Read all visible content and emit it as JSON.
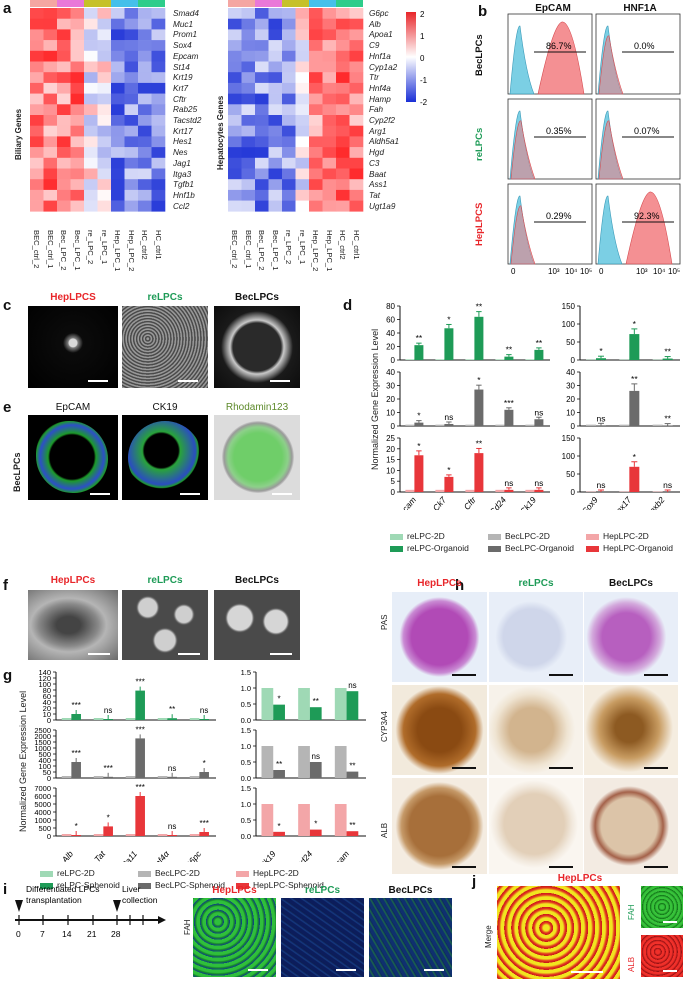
{
  "panels": {
    "a": "a",
    "b": "b",
    "c": "c",
    "d": "d",
    "e": "e",
    "f": "f",
    "g": "g",
    "h": "h",
    "i": "i",
    "j": "j"
  },
  "heatmap": {
    "biliary_label": "Biliary Genes",
    "hepatocyte_label": "Hepatocytes Genes",
    "biliary_genes": [
      "Smad4",
      "Muc1",
      "Prom1",
      "Sox4",
      "Epcam",
      "St14",
      "Krt19",
      "Krt7",
      "Cftr",
      "Rab25",
      "Tacstd2",
      "Krt17",
      "Hes1",
      "Nes",
      "Jag1",
      "Itga3",
      "Tgfb1",
      "Hnf1b",
      "Ccl2"
    ],
    "hepatocyte_genes": [
      "G6pc",
      "Alb",
      "Apoa1",
      "C9",
      "Hnf1a",
      "Cyp1a2",
      "Ttr",
      "Hnf4a",
      "Hamp",
      "Fah",
      "Cyp2f2",
      "Arg1",
      "Aldh5a1",
      "Hgd",
      "C3",
      "Baat",
      "Ass1",
      "Tat",
      "Ugt1a9"
    ],
    "samples_left": [
      "BEC_ctrl_2",
      "BEC_ctrl_1",
      "Bec_LPC_2",
      "Bec_LPC_1",
      "re_LPC_2",
      "re_LPC_1",
      "Hep_LPC_1",
      "Hep_LPC_2",
      "HC_ctrl2",
      "HC_ctrl1"
    ],
    "samples_right": [
      "BEC_ctrl_2",
      "BEC_ctrl_1",
      "Bec_LPC_2",
      "Bec_LPC_1",
      "re_LPC_2",
      "re_LPC_1",
      "Hep_LPC_2",
      "Hep_LPC_1",
      "HC_ctrl2",
      "HC_ctrl1"
    ],
    "scale_ticks": [
      "2",
      "1",
      "0",
      "-1",
      "-2"
    ],
    "colors": {
      "high": "#e8262a",
      "mid": "#ffffff",
      "low": "#1a2fd6"
    }
  },
  "flow": {
    "columns": [
      "EpCAM",
      "HNF1A"
    ],
    "rows": [
      {
        "name": "BecLPCs",
        "color": "#111111",
        "epcam": "86.7%",
        "hnf1a": "0.0%"
      },
      {
        "name": "reLPCs",
        "color": "#1e9b57",
        "epcam": "0.35%",
        "hnf1a": "0.07%"
      },
      {
        "name": "HepLPCS",
        "color": "#e8262a",
        "epcam": "0.29%",
        "hnf1a": "92.3%"
      }
    ],
    "xticks": [
      "0",
      "10³",
      "10⁴",
      "10⁵"
    ]
  },
  "c_titles": [
    "HepLPCS",
    "reLPCs",
    "BecLPCs"
  ],
  "e_titles": [
    "EpCAM",
    "CK19",
    "Rhodamin123"
  ],
  "e_side": "BecLPCs",
  "f_titles": [
    "HepLPCs",
    "reLPCs",
    "BecLPCs"
  ],
  "h_titles": [
    "HepLPCs",
    "reLPCs",
    "BecLPCs"
  ],
  "h_rows": [
    "PAS",
    "CYP3A4",
    "ALB"
  ],
  "i_titles": [
    "HepLPCs",
    "reLPCs",
    "BecLPCs"
  ],
  "i_side": "FAH",
  "i_timeline": {
    "top_left": "Differentiated LPCs",
    "top_left2": "transplantation",
    "top_right": "Liver",
    "top_right2": "collection",
    "ticks": [
      "0",
      "7",
      "14",
      "21",
      "28"
    ]
  },
  "j": {
    "title": "HepLPCs",
    "merge": "Merge",
    "fah": "FAH",
    "alb": "ALB"
  },
  "chart_data": [
    {
      "type": "bar",
      "title": "",
      "ylabel": "Normalized Gene Expression Level",
      "categories": [
        "Epcam",
        "Ck7",
        "Cftr",
        "Cd24",
        "Ck19"
      ],
      "series": [
        {
          "name": "reLPC-Organoid",
          "values": [
            22,
            47,
            64,
            5,
            15
          ],
          "stars": [
            "**",
            "*",
            "**",
            "**",
            "**"
          ],
          "ylim": [
            0,
            80
          ],
          "yticks": [
            "0",
            "20",
            "40",
            "60",
            "80"
          ]
        },
        {
          "name": "BecLPC-Organoid",
          "values": [
            2.5,
            1.5,
            27,
            12,
            5
          ],
          "stars": [
            "*",
            "ns",
            "*",
            "***",
            "ns"
          ],
          "ylim": [
            0,
            40
          ],
          "yticks": [
            "0",
            "10",
            "20",
            "30",
            "40"
          ]
        },
        {
          "name": "HepLPC-Organoid",
          "values": [
            17,
            7,
            18,
            1,
            1
          ],
          "stars": [
            "*",
            "*",
            "**",
            "ns",
            "ns"
          ],
          "ylim": [
            0,
            25
          ],
          "yticks": [
            "0",
            "5",
            "10",
            "15",
            "20",
            "25"
          ]
        }
      ]
    },
    {
      "type": "bar",
      "title": "",
      "categories": [
        "Sox9",
        "Sox17",
        "Hoxb2"
      ],
      "series": [
        {
          "name": "reLPC-Organoid",
          "values": [
            5,
            72,
            4
          ],
          "stars": [
            "*",
            "*",
            "**"
          ],
          "ylim": [
            0,
            150
          ],
          "yticks": [
            "0",
            "50",
            "100",
            "150"
          ]
        },
        {
          "name": "BecLPC-Organoid",
          "values": [
            0.5,
            26,
            0.3
          ],
          "stars": [
            "ns",
            "**",
            "**"
          ],
          "ylim": [
            0,
            40
          ],
          "yticks": [
            "0",
            "10",
            "20",
            "30",
            "40"
          ]
        },
        {
          "name": "HepLPC-Organoid",
          "values": [
            0,
            70,
            0
          ],
          "stars": [
            "ns",
            "*",
            "ns"
          ],
          "ylim": [
            0,
            150
          ],
          "yticks": [
            "0",
            "50",
            "100",
            "150"
          ]
        }
      ]
    },
    {
      "type": "bar",
      "title": "",
      "ylabel": "Normalized Gene Expression Level",
      "categories": [
        "Alb",
        "Tat",
        "Cyp3a11",
        "Hnf4α",
        "G6pc"
      ],
      "series": [
        {
          "name": "reLPC-Sphenoid",
          "values": [
            10,
            0.5,
            78,
            3,
            0.3
          ],
          "stars": [
            "***",
            "ns",
            "***",
            "**",
            "ns"
          ],
          "yticks": [
            "0",
            "10",
            "20",
            "40",
            "60",
            "80",
            "100",
            "120",
            "140"
          ]
        },
        {
          "name": "BecLPC-Sphenoid",
          "values": [
            300,
            10,
            1800,
            10,
            50
          ],
          "stars": [
            "***",
            "***",
            "***",
            "ns",
            "*"
          ],
          "yticks": [
            "0",
            "50",
            "100",
            "400",
            "500",
            "1000",
            "1500",
            "2000",
            "2500"
          ]
        },
        {
          "name": "HepLPC-Sphenoid",
          "values": [
            10,
            600,
            6000,
            0,
            250
          ],
          "stars": [
            "*",
            "*",
            "***",
            "ns",
            "***"
          ],
          "yticks": [
            "0",
            "500",
            "1000",
            "4000",
            "5000",
            "6000",
            "7000"
          ]
        }
      ]
    },
    {
      "type": "bar",
      "title": "",
      "categories": [
        "Ck19",
        "Cd24",
        "Epcam"
      ],
      "series": [
        {
          "name": "reLPC-2D",
          "values": [
            1.0,
            1.0,
            1.0
          ],
          "stars": [
            "",
            "",
            ""
          ]
        },
        {
          "name": "reLPC-Sphenoid",
          "values": [
            0.48,
            0.4,
            0.9
          ],
          "stars": [
            "*",
            "**",
            "ns"
          ],
          "ylim": [
            0,
            1.5
          ],
          "yticks": [
            "0.0",
            "0.5",
            "1.0",
            "1.5"
          ]
        },
        {
          "name": "BecLPC-2D",
          "values": [
            1.0,
            1.0,
            1.0
          ],
          "stars": [
            "",
            "",
            ""
          ]
        },
        {
          "name": "BecLPC-Sphenoid",
          "values": [
            0.25,
            0.5,
            0.2
          ],
          "stars": [
            "**",
            "ns",
            "**"
          ],
          "ylim": [
            0,
            1.5
          ],
          "yticks": [
            "0.0",
            "0.5",
            "1.0",
            "1.5"
          ]
        },
        {
          "name": "HepLPC-2D",
          "values": [
            1.0,
            1.0,
            1.0
          ],
          "stars": [
            "",
            "",
            ""
          ]
        },
        {
          "name": "HepLPC-Sphenoid",
          "values": [
            0.13,
            0.2,
            0.15
          ],
          "stars": [
            "*",
            "*",
            "**"
          ],
          "ylim": [
            0,
            1.5
          ],
          "yticks": [
            "0.0",
            "0.5",
            "1.0",
            "1.5"
          ]
        }
      ]
    }
  ],
  "legend_d": [
    "reLPC-2D",
    "reLPC-Organoid",
    "BecLPC-2D",
    "BecLPC-Organoid",
    "HepLPC-2D",
    "HepLPC-Organoid"
  ],
  "legend_g": [
    "reLPC-2D",
    "reLPC-Sphenoid",
    "BecLPC-2D",
    "BecLPC-Sphenoid",
    "HepLPC-2D",
    "HepLPC-Sphenoid"
  ],
  "colors": {
    "green": "#1e9b57",
    "greenLight": "#9fd9b5",
    "grey": "#6b6b6b",
    "greyLight": "#b5b5b5",
    "red": "#e8363a",
    "redLight": "#f3a6a8",
    "cyan": "#5fc6de",
    "pink": "#f08a8c"
  }
}
